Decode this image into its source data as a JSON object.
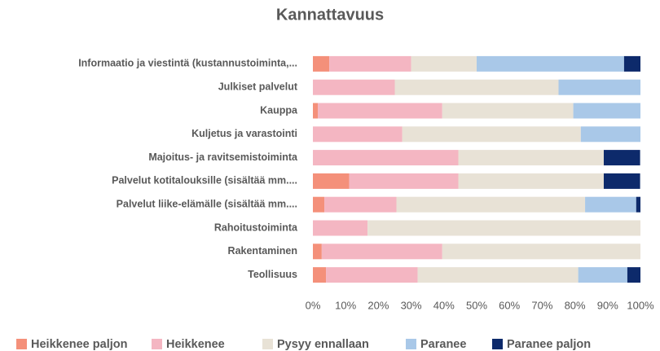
{
  "chart_data": {
    "type": "stacked_barh",
    "title": "Kannattavuus",
    "categories": [
      "Informaatio ja viestintä (kustannustoiminta,...",
      "Julkiset palvelut",
      "Kauppa",
      "Kuljetus ja varastointi",
      "Majoitus- ja ravitsemistoiminta",
      "Palvelut kotitalouksille (sisältää mm....",
      "Palvelut liike-elämälle (sisältää mm....",
      "Rahoitustoiminta",
      "Rakentaminen",
      "Teollisuus"
    ],
    "series": [
      {
        "name": "Heikkenee paljon",
        "color": "#f4907a",
        "values": [
          5,
          0,
          1.5,
          0,
          0,
          11.1,
          3.5,
          0,
          2.7,
          4
        ]
      },
      {
        "name": "Heikkenee",
        "color": "#f4b6c2",
        "values": [
          25,
          25,
          38,
          27.3,
          44.4,
          33.3,
          22,
          16.7,
          36.8,
          28
        ]
      },
      {
        "name": "Pysyy ennallaan",
        "color": "#e8e2d6",
        "values": [
          20,
          50,
          40,
          54.5,
          44.4,
          44.4,
          57.6,
          83.3,
          60.5,
          49
        ]
      },
      {
        "name": "Paranee",
        "color": "#a9c8e8",
        "values": [
          45,
          25,
          20.5,
          18.2,
          0,
          0,
          15.6,
          0,
          0,
          15
        ]
      },
      {
        "name": "Paranee paljon",
        "color": "#0d2a6b",
        "values": [
          5,
          0,
          0,
          0,
          11.1,
          11.1,
          1.3,
          0,
          0,
          4
        ]
      }
    ],
    "xlim": [
      0,
      100
    ],
    "xticks": [
      {
        "value": 0,
        "label": "0%"
      },
      {
        "value": 10,
        "label": "10%"
      },
      {
        "value": 20,
        "label": "20%"
      },
      {
        "value": 30,
        "label": "30%"
      },
      {
        "value": 40,
        "label": "40%"
      },
      {
        "value": 50,
        "label": "50%"
      },
      {
        "value": 60,
        "label": "60%"
      },
      {
        "value": 70,
        "label": "70%"
      },
      {
        "value": 80,
        "label": "80%"
      },
      {
        "value": 90,
        "label": "90%"
      },
      {
        "value": 100,
        "label": "100%"
      }
    ],
    "legend": "bottom"
  }
}
